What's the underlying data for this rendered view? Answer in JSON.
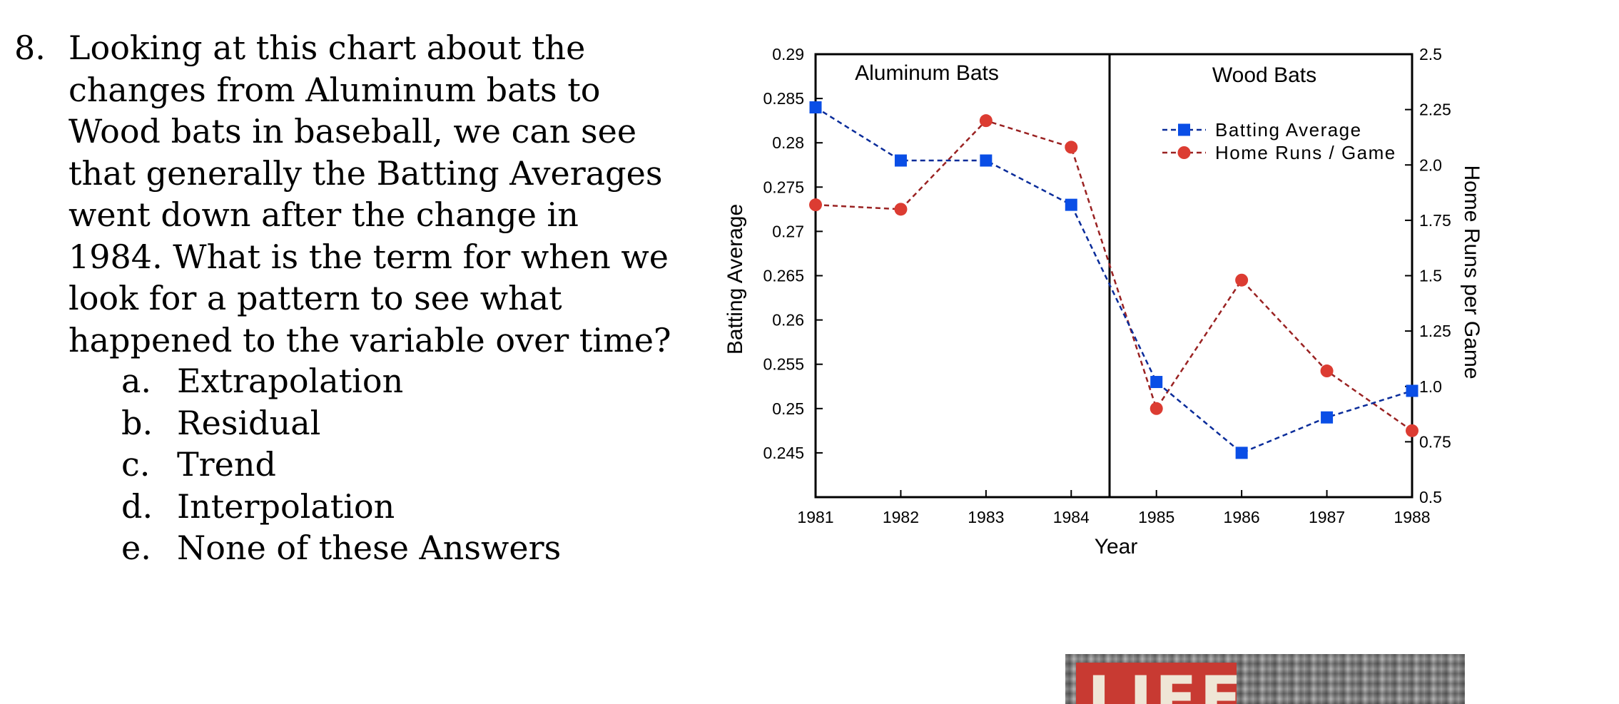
{
  "question": {
    "number": "8.",
    "text": "Looking at this chart about the changes from Aluminum bats to Wood bats in baseball, we can see that generally the Batting Averages went down after the change in 1984. What is the term for when we look for a pattern to see what happened to the variable over time?",
    "answers": [
      {
        "letter": "a.",
        "text": "Extrapolation"
      },
      {
        "letter": "b.",
        "text": "Residual"
      },
      {
        "letter": "c.",
        "text": "Trend"
      },
      {
        "letter": "d.",
        "text": "Interpolation"
      },
      {
        "letter": "e.",
        "text": "None of these Answers"
      }
    ]
  },
  "chart_data": {
    "type": "line",
    "x": [
      1981,
      1982,
      1983,
      1984,
      1985,
      1986,
      1987,
      1988
    ],
    "xlabel": "Year",
    "ylabel": "Batting Average",
    "y2label": "Home Runs per Game",
    "xlim": [
      1981,
      1988
    ],
    "ylim": [
      0.24,
      0.29
    ],
    "y2lim": [
      0.5,
      2.5
    ],
    "xticks": [
      "1981",
      "1982",
      "1983",
      "1984",
      "1985",
      "1986",
      "1987",
      "1988"
    ],
    "yticks": [
      "0.29",
      "0.285",
      "0.28",
      "0.275",
      "0.27",
      "0.265",
      "0.26",
      "0.255",
      "0.25",
      "0.245"
    ],
    "y2ticks": [
      "2.5",
      "2.25",
      "2.0",
      "1.75",
      "1.5",
      "1.25",
      "1.0",
      "0.75",
      "0.5"
    ],
    "regions": [
      {
        "label": "Aluminum Bats"
      },
      {
        "label": "Wood Bats"
      }
    ],
    "divider_x": 1984.45,
    "legend_placement": "top-right, inside Wood Bats region",
    "grid": false,
    "series": [
      {
        "name": "Batting Average",
        "axis": "left",
        "marker": "square",
        "color": "#0a4ee6",
        "values": [
          0.284,
          0.278,
          0.278,
          0.273,
          0.253,
          0.245,
          0.249,
          0.252
        ]
      },
      {
        "name": "Home Runs / Game",
        "axis": "right",
        "marker": "circle",
        "color": "#dc3c32",
        "values": [
          1.82,
          1.8,
          2.2,
          2.08,
          0.9,
          1.48,
          1.07,
          0.8
        ]
      }
    ],
    "line_style": {
      "batting": "#0a2c9a",
      "homeruns": "#9a2222"
    }
  },
  "image": {
    "logo_text": "LIFE",
    "description_icon": "life-magazine-cover"
  }
}
